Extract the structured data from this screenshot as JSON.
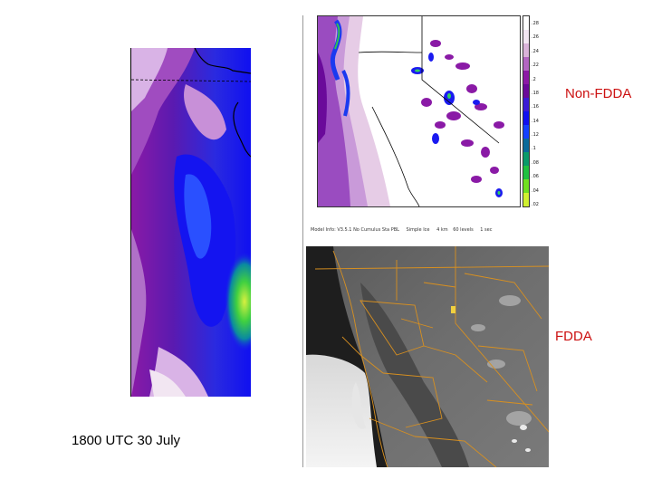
{
  "labels": {
    "non_fdda": "Non-FDDA",
    "fdda": "FDDA",
    "time_caption": "1800 UTC 30 July"
  },
  "model_run_caption": {
    "model": "Model Info: V3.5.1  No Cumulus  Sta PBL",
    "grid": "Simple Ice",
    "dx": "4 km",
    "levels": "60 levels",
    "dt": "1 sec"
  },
  "colorbar": {
    "ticks": [
      ".28",
      ".26",
      ".24",
      ".22",
      ".2",
      ".18",
      ".16",
      ".14",
      ".12",
      ".1",
      ".08",
      ".06",
      ".04",
      ".02"
    ],
    "colors": [
      "#ffffff",
      "#f2e6f2",
      "#d9b3d9",
      "#b366c2",
      "#8c1aa6",
      "#6a0a9a",
      "#3a1ad6",
      "#1010f0",
      "#1440ff",
      "#0a6a9a",
      "#0a9a6a",
      "#20c040",
      "#70e020",
      "#d0f030"
    ]
  },
  "colors": {
    "label_red": "#cc1111",
    "purple": "#8a1aa6",
    "blue": "#1a1af0",
    "green": "#30d030"
  }
}
